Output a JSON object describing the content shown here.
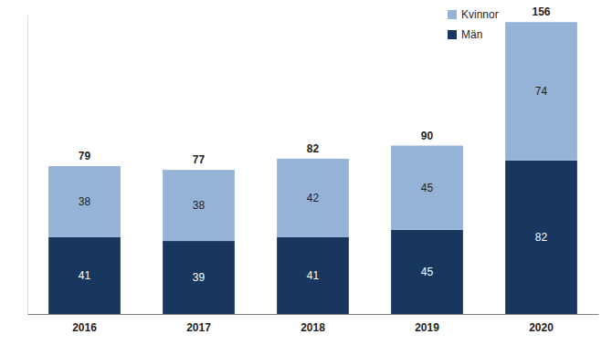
{
  "chart_data": {
    "type": "bar",
    "stacked": true,
    "data_labels": true,
    "tick_labels": "x",
    "grid": false,
    "legend": "top-right",
    "categories": [
      "2016",
      "2017",
      "2018",
      "2019",
      "2020"
    ],
    "series": [
      {
        "name": "Män",
        "color": "#17375e",
        "values": [
          41,
          39,
          41,
          45,
          82
        ]
      },
      {
        "name": "Kvinnor",
        "color": "#95b3d7",
        "values": [
          38,
          38,
          42,
          45,
          74
        ]
      }
    ],
    "totals": [
      79,
      77,
      82,
      90,
      156
    ],
    "ylim": [
      0,
      160
    ]
  }
}
